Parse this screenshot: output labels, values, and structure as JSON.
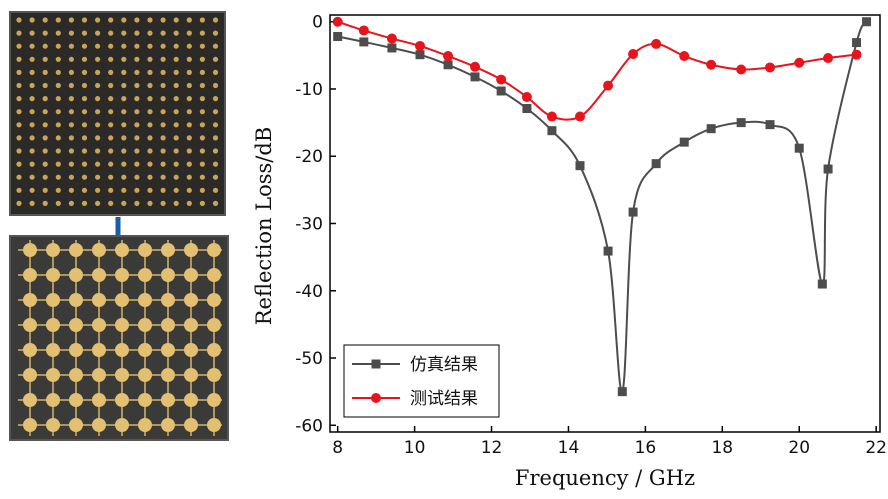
{
  "chart_data": {
    "type": "line",
    "xlabel": "Frequency / GHz",
    "ylabel": "Reflection Loss/dB",
    "xlim": [
      7.8,
      22.1
    ],
    "ylim": [
      -61,
      1
    ],
    "xticks": [
      8,
      10,
      12,
      14,
      16,
      18,
      20,
      22
    ],
    "yticks": [
      -60,
      -50,
      -40,
      -30,
      -20,
      -10,
      0
    ],
    "legend": "lower left",
    "series": [
      {
        "name": "仿真结果",
        "color": "#4d4d4d",
        "marker": "square",
        "x": [
          8,
          8.68,
          9.41,
          10.14,
          10.87,
          11.57,
          12.25,
          12.92,
          13.57,
          14.3,
          15.03,
          15.4,
          15.68,
          16.28,
          17.01,
          17.71,
          18.49,
          19.24,
          20.0,
          20.6,
          20.75,
          21.49,
          21.75
        ],
        "values": [
          -2.2,
          -3,
          -3.9,
          -4.9,
          -6.4,
          -8.2,
          -10.3,
          -12.9,
          -16.2,
          -21.4,
          -34.1,
          -55,
          -28.3,
          -21.1,
          -17.9,
          -15.9,
          -15,
          -15.3,
          -18.8,
          -39,
          -21.9,
          -3.1,
          0
        ]
      },
      {
        "name": "测试结果",
        "color": "#e8141c",
        "marker": "circle",
        "x": [
          8,
          8.68,
          9.41,
          10.14,
          10.87,
          11.57,
          12.25,
          12.92,
          13.57,
          14.3,
          15.03,
          15.68,
          16.28,
          17.01,
          17.71,
          18.49,
          19.24,
          20.0,
          20.75,
          21.49
        ],
        "values": [
          0,
          -1.3,
          -2.5,
          -3.6,
          -5.1,
          -6.7,
          -8.6,
          -11.2,
          -14.1,
          -14.1,
          -9.5,
          -4.8,
          -3.3,
          -5.1,
          -6.4,
          -7.1,
          -6.8,
          -6.1,
          -5.4,
          -4.9
        ]
      }
    ]
  }
}
